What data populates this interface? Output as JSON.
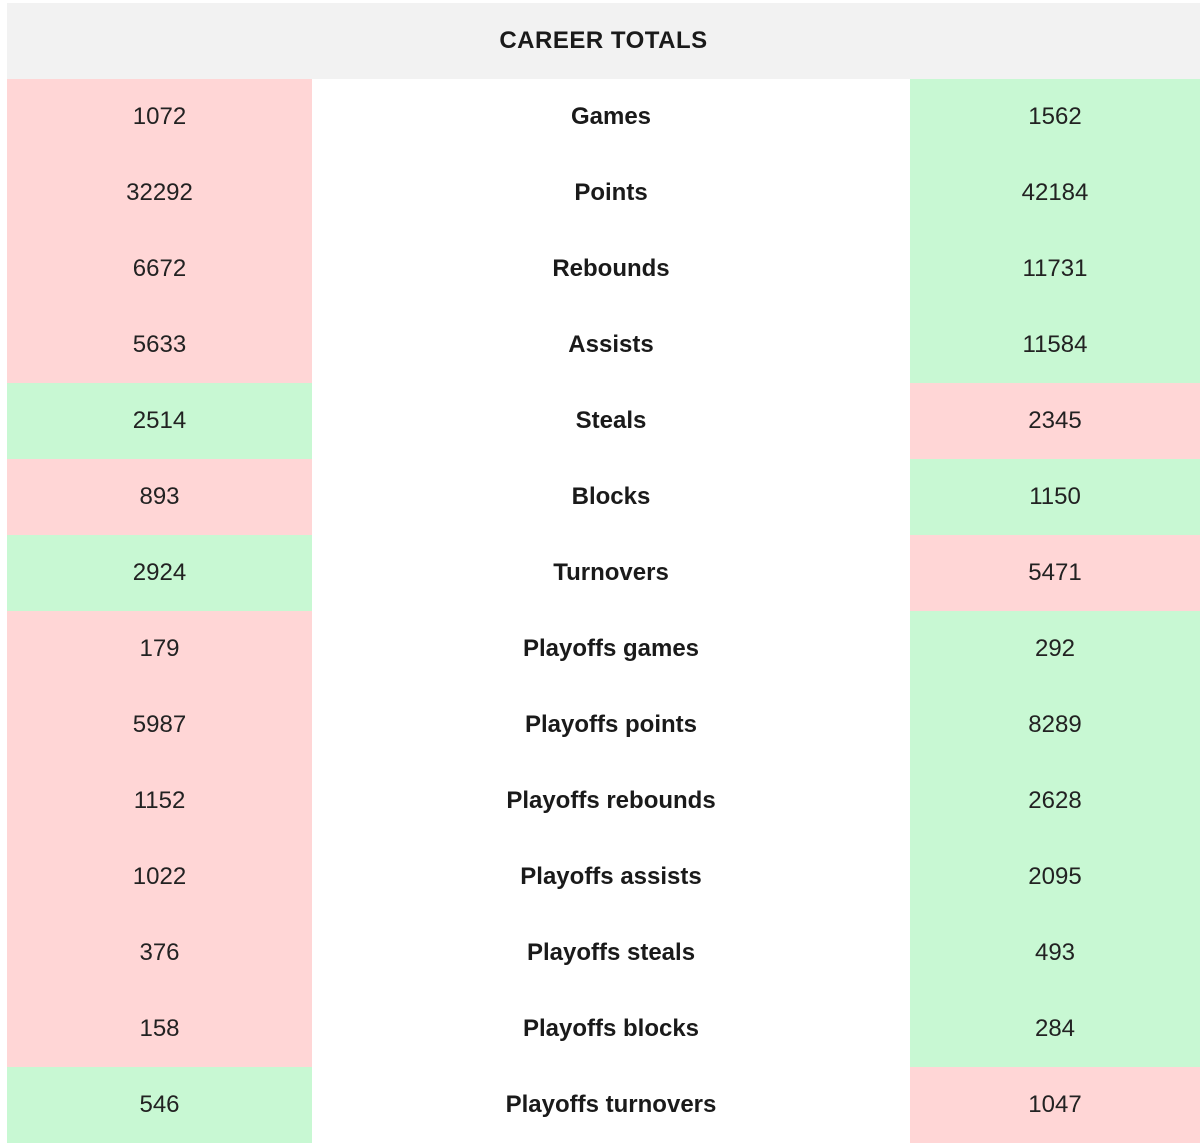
{
  "colors": {
    "higher": "#c8f8d3",
    "lower": "#ffd6d6",
    "header_bg": "#f2f2f2"
  },
  "table": {
    "title": "CAREER TOTALS",
    "rows": [
      {
        "label": "Games",
        "left": "1072",
        "right": "1562",
        "left_status": "lower",
        "right_status": "higher"
      },
      {
        "label": "Points",
        "left": "32292",
        "right": "42184",
        "left_status": "lower",
        "right_status": "higher"
      },
      {
        "label": "Rebounds",
        "left": "6672",
        "right": "11731",
        "left_status": "lower",
        "right_status": "higher"
      },
      {
        "label": "Assists",
        "left": "5633",
        "right": "11584",
        "left_status": "lower",
        "right_status": "higher"
      },
      {
        "label": "Steals",
        "left": "2514",
        "right": "2345",
        "left_status": "higher",
        "right_status": "lower"
      },
      {
        "label": "Blocks",
        "left": "893",
        "right": "1150",
        "left_status": "lower",
        "right_status": "higher"
      },
      {
        "label": "Turnovers",
        "left": "2924",
        "right": "5471",
        "left_status": "higher",
        "right_status": "lower"
      },
      {
        "label": "Playoffs games",
        "left": "179",
        "right": "292",
        "left_status": "lower",
        "right_status": "higher"
      },
      {
        "label": "Playoffs points",
        "left": "5987",
        "right": "8289",
        "left_status": "lower",
        "right_status": "higher"
      },
      {
        "label": "Playoffs rebounds",
        "left": "1152",
        "right": "2628",
        "left_status": "lower",
        "right_status": "higher"
      },
      {
        "label": "Playoffs assists",
        "left": "1022",
        "right": "2095",
        "left_status": "lower",
        "right_status": "higher"
      },
      {
        "label": "Playoffs steals",
        "left": "376",
        "right": "493",
        "left_status": "lower",
        "right_status": "higher"
      },
      {
        "label": "Playoffs blocks",
        "left": "158",
        "right": "284",
        "left_status": "lower",
        "right_status": "higher"
      },
      {
        "label": "Playoffs turnovers",
        "left": "546",
        "right": "1047",
        "left_status": "higher",
        "right_status": "lower"
      }
    ]
  }
}
